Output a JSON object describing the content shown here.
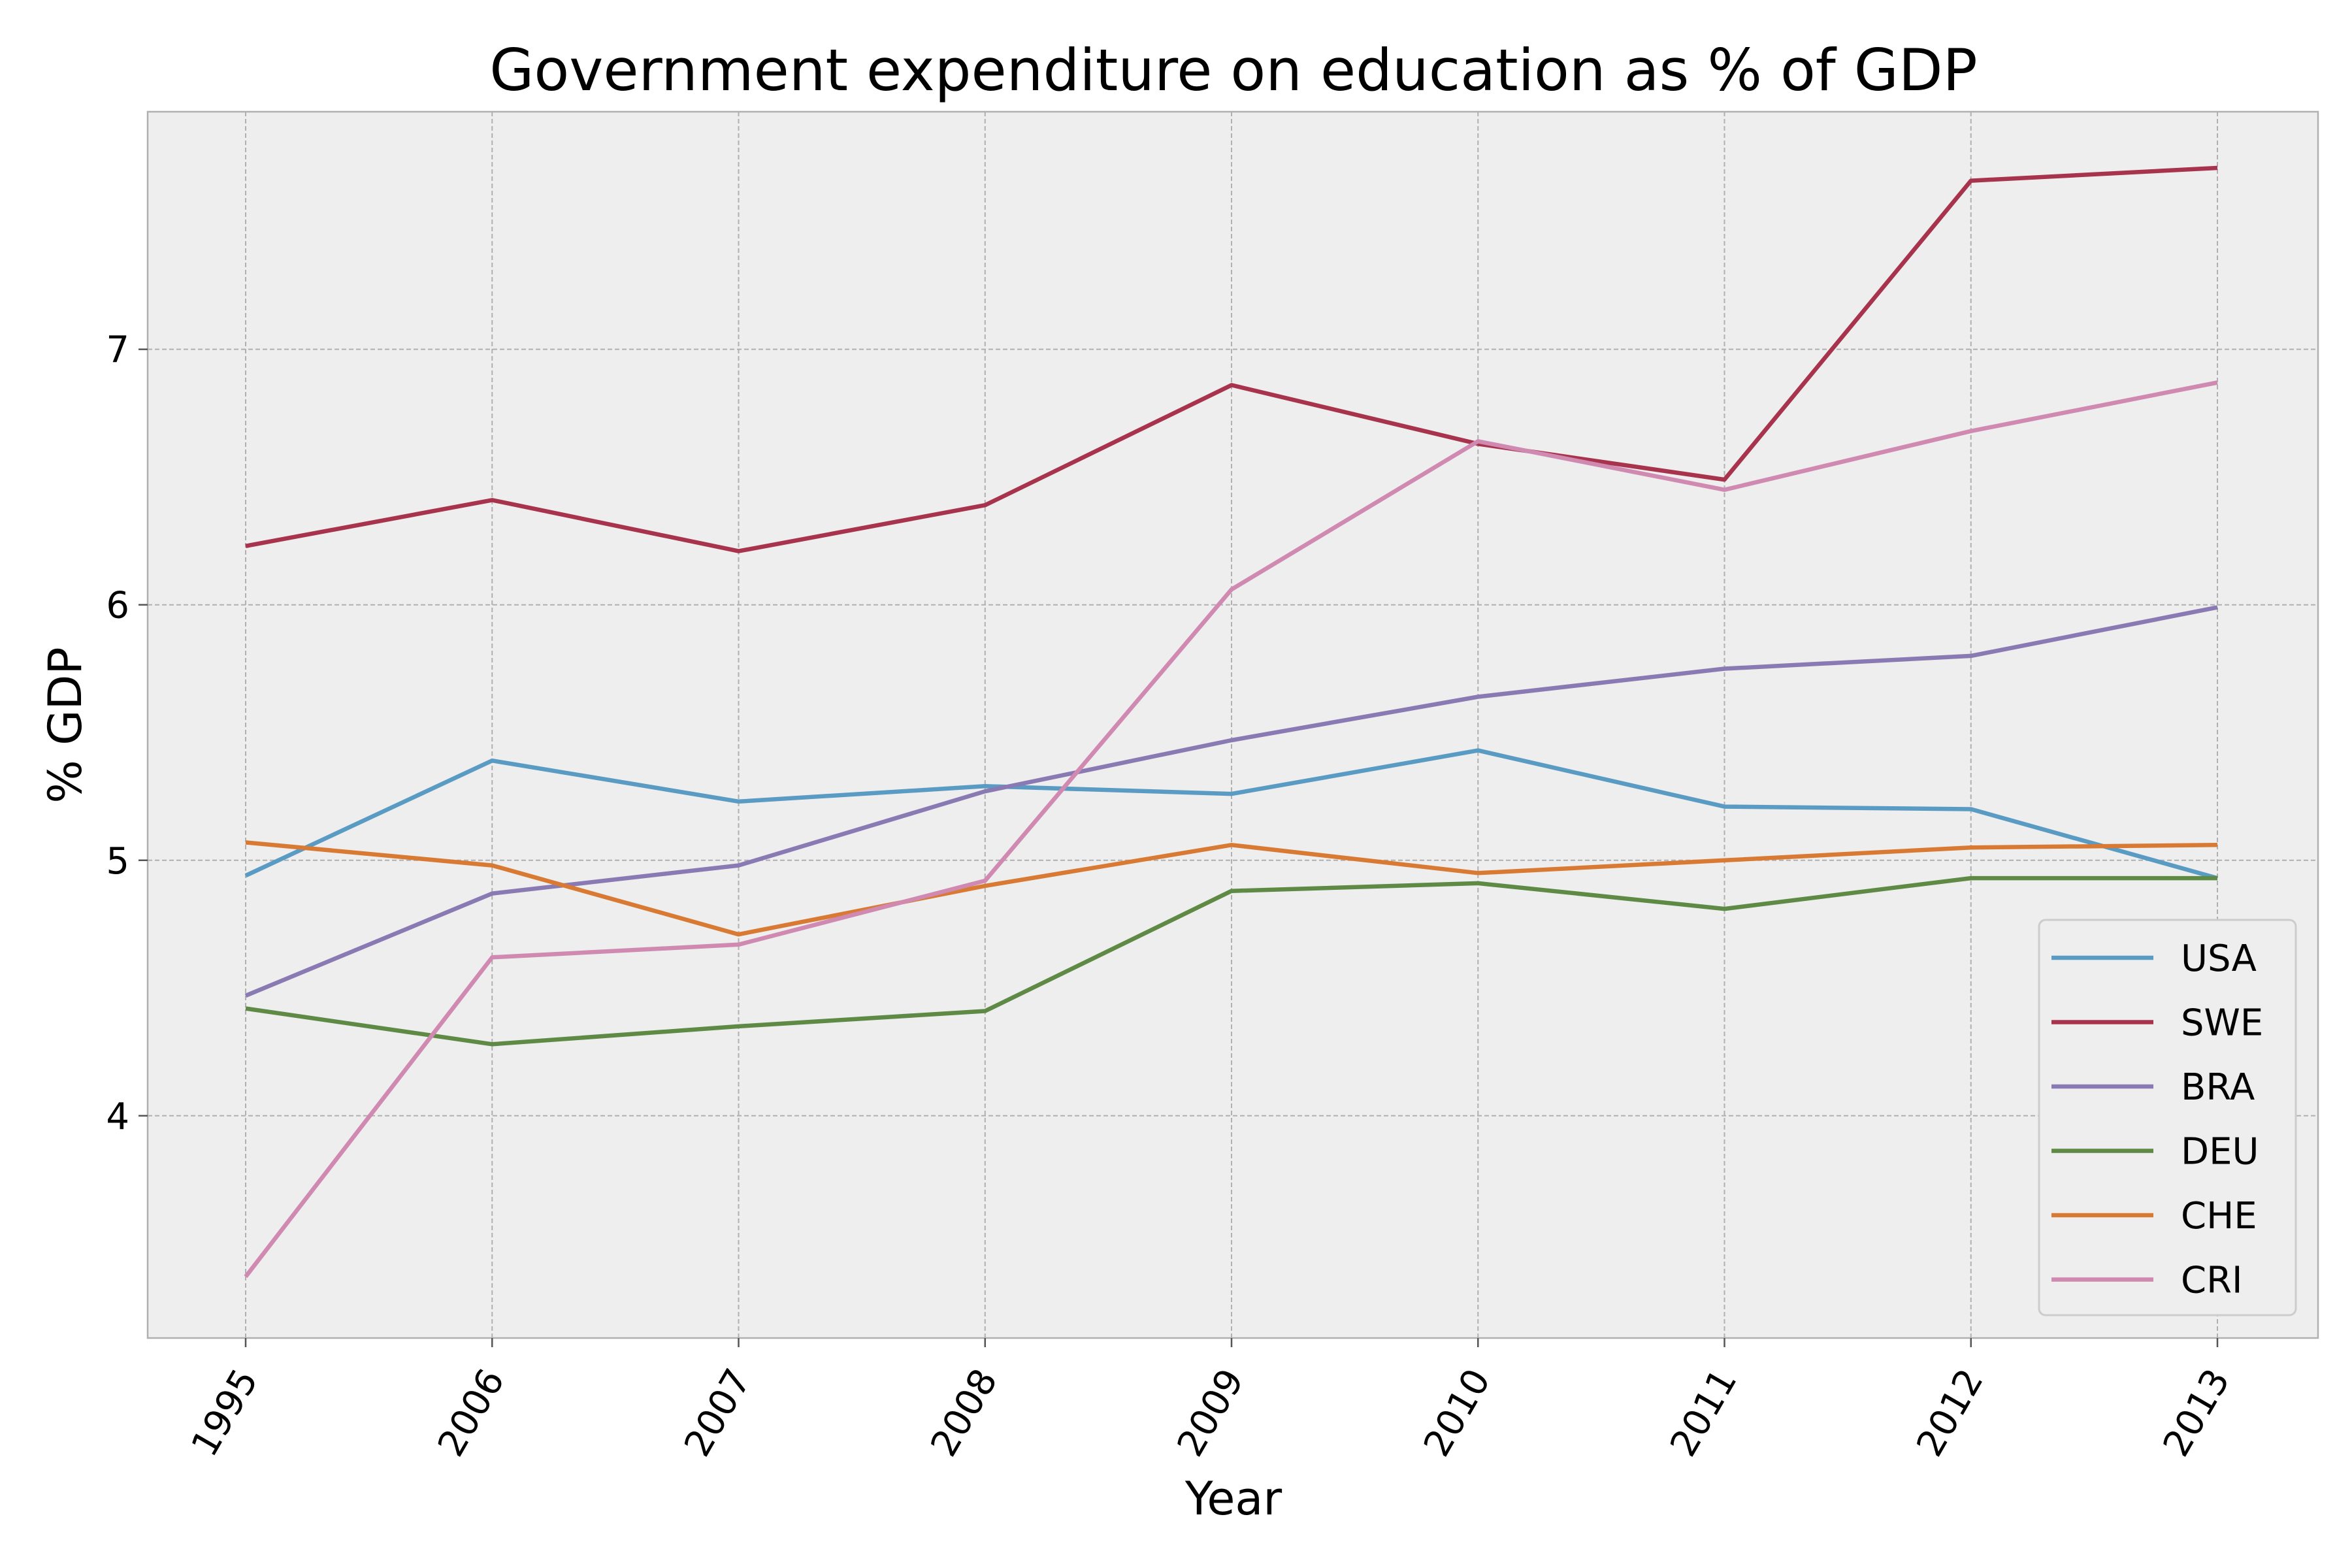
{
  "chart_data": {
    "type": "line",
    "title": "Government expenditure on education as % of GDP",
    "xlabel": "Year",
    "ylabel": "% GDP",
    "categories": [
      "1995",
      "2006",
      "2007",
      "2008",
      "2009",
      "2010",
      "2011",
      "2012",
      "2013"
    ],
    "yticks": [
      "4",
      "5",
      "6",
      "7"
    ],
    "ylim": [
      3.13,
      7.93
    ],
    "grid": true,
    "legend_position": "lower-right",
    "series": [
      {
        "name": "USA",
        "color": "#5a9bc4",
        "values": [
          4.94,
          5.39,
          5.23,
          5.29,
          5.26,
          5.43,
          5.21,
          5.2,
          4.93
        ]
      },
      {
        "name": "SWE",
        "color": "#a8334d",
        "values": [
          6.23,
          6.41,
          6.21,
          6.39,
          6.86,
          6.63,
          6.49,
          7.66,
          7.71
        ]
      },
      {
        "name": "BRA",
        "color": "#8a7ab3",
        "values": [
          4.47,
          4.87,
          4.98,
          5.27,
          5.47,
          5.64,
          5.75,
          5.8,
          5.99
        ]
      },
      {
        "name": "DEU",
        "color": "#5e8a45",
        "values": [
          4.42,
          4.28,
          4.35,
          4.41,
          4.88,
          4.91,
          4.81,
          4.93,
          4.93
        ]
      },
      {
        "name": "CHE",
        "color": "#d87a33",
        "values": [
          5.07,
          4.98,
          4.71,
          4.9,
          5.06,
          4.95,
          5.0,
          5.05,
          5.06
        ]
      },
      {
        "name": "CRI",
        "color": "#d08ab1",
        "values": [
          3.37,
          4.62,
          4.67,
          4.92,
          6.06,
          6.64,
          6.45,
          6.68,
          6.87
        ]
      }
    ]
  }
}
